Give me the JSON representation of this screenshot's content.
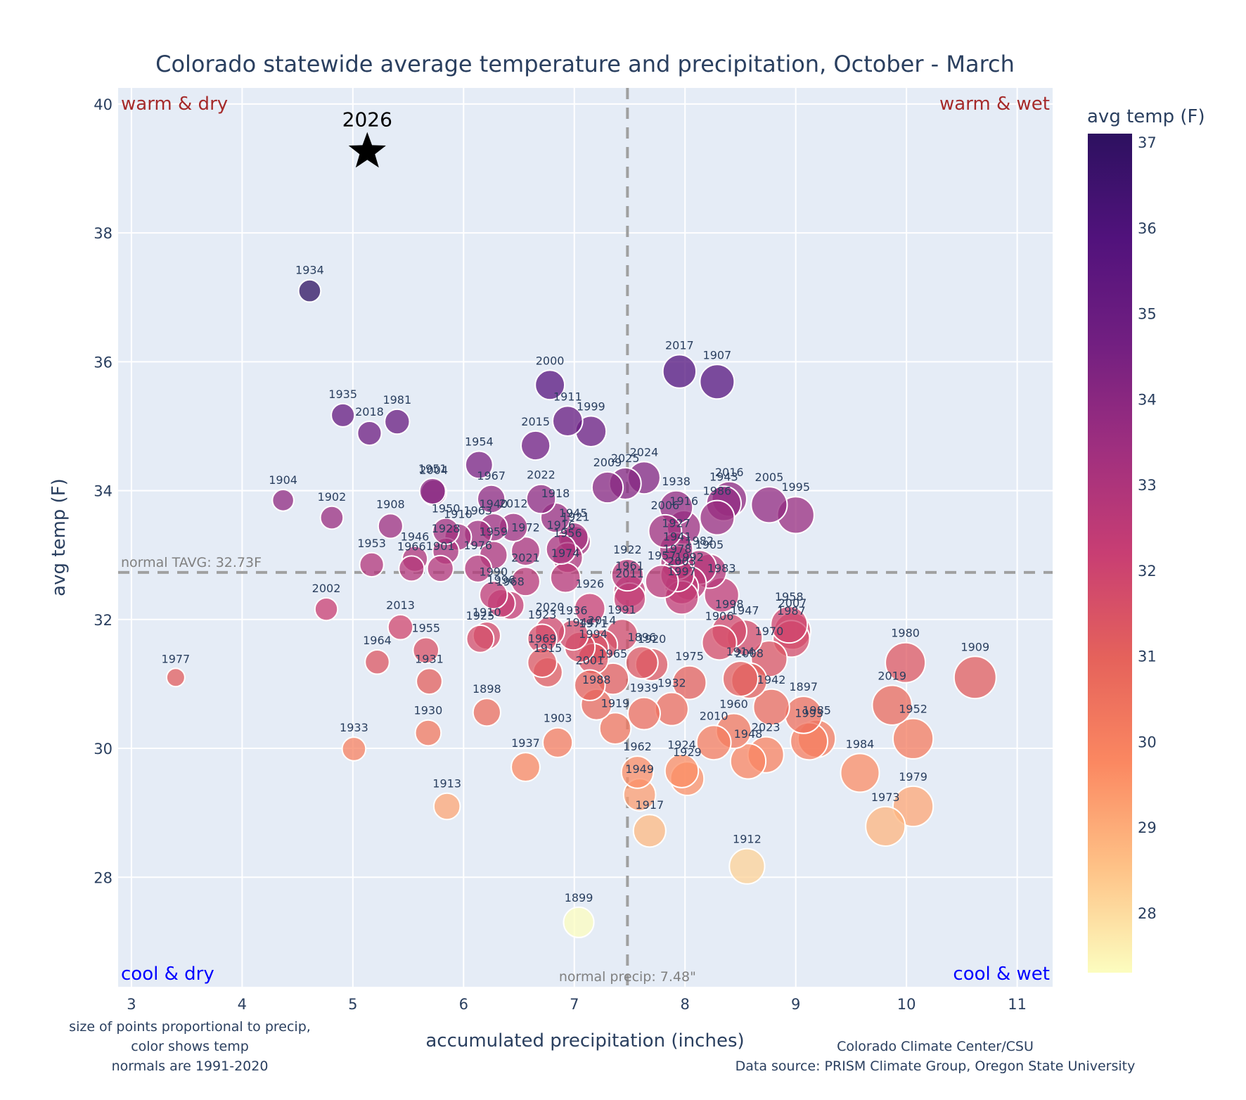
{
  "chart_data": {
    "type": "scatter",
    "title": "Colorado statewide average temperature and precipitation, October - March",
    "xlabel": "accumulated precipitation (inches)",
    "ylabel": "avg temp (F)",
    "xlim": [
      2.88,
      11.32
    ],
    "ylim": [
      26.3,
      40.25
    ],
    "xticks": [
      3,
      4,
      5,
      6,
      7,
      8,
      9,
      10,
      11
    ],
    "yticks": [
      28,
      30,
      32,
      34,
      36,
      38,
      40
    ],
    "grid": true,
    "colorbar": {
      "title": "avg temp (F)",
      "range": [
        27.3,
        37.1
      ],
      "ticks": [
        28,
        29,
        30,
        31,
        32,
        33,
        34,
        35,
        36,
        37
      ],
      "colorscale": [
        "#fcfdbf",
        "#fec287",
        "#fb8861",
        "#e5625b",
        "#c83e73",
        "#9f2f7f",
        "#721f81",
        "#51127c",
        "#2d1160"
      ]
    },
    "normals": {
      "precip": 7.48,
      "precip_label": "normal precip: 7.48\"",
      "tavg": 32.73,
      "tavg_label": "normal TAVG: 32.73F"
    },
    "quadrant_labels": {
      "warm_dry": "warm & dry",
      "warm_wet": "warm & wet",
      "cool_dry": "cool & dry",
      "cool_wet": "cool & wet"
    },
    "highlight": {
      "year": "2026",
      "precip": 5.13,
      "temp": 39.26,
      "marker": "star"
    },
    "points": [
      {
        "year": "1934",
        "precip": 4.61,
        "temp": 37.1
      },
      {
        "year": "1935",
        "precip": 4.91,
        "temp": 35.17
      },
      {
        "year": "2018",
        "precip": 5.15,
        "temp": 34.89
      },
      {
        "year": "1981",
        "precip": 5.4,
        "temp": 35.07
      },
      {
        "year": "1904",
        "precip": 4.37,
        "temp": 33.85
      },
      {
        "year": "1902",
        "precip": 4.81,
        "temp": 33.58
      },
      {
        "year": "2002",
        "precip": 4.76,
        "temp": 32.16
      },
      {
        "year": "1977",
        "precip": 3.4,
        "temp": 31.1
      },
      {
        "year": "1953",
        "precip": 5.17,
        "temp": 32.85
      },
      {
        "year": "1908",
        "precip": 5.34,
        "temp": 33.45
      },
      {
        "year": "1964",
        "precip": 5.22,
        "temp": 31.34
      },
      {
        "year": "2013",
        "precip": 5.43,
        "temp": 31.88
      },
      {
        "year": "1955",
        "precip": 5.66,
        "temp": 31.52
      },
      {
        "year": "1931",
        "precip": 5.69,
        "temp": 31.04
      },
      {
        "year": "1930",
        "precip": 5.68,
        "temp": 30.24
      },
      {
        "year": "1933",
        "precip": 5.01,
        "temp": 29.99
      },
      {
        "year": "1913",
        "precip": 5.85,
        "temp": 29.1
      },
      {
        "year": "1946",
        "precip": 5.56,
        "temp": 32.94
      },
      {
        "year": "1966",
        "precip": 5.53,
        "temp": 32.79
      },
      {
        "year": "1901",
        "precip": 5.79,
        "temp": 32.79
      },
      {
        "year": "1928",
        "precip": 5.84,
        "temp": 33.06
      },
      {
        "year": "1950",
        "precip": 5.84,
        "temp": 33.37
      },
      {
        "year": "1951",
        "precip": 5.72,
        "temp": 33.99
      },
      {
        "year": "2004",
        "precip": 5.73,
        "temp": 33.97
      },
      {
        "year": "1910",
        "precip": 5.95,
        "temp": 33.28
      },
      {
        "year": "1963",
        "precip": 6.13,
        "temp": 33.33
      },
      {
        "year": "1954",
        "precip": 6.14,
        "temp": 34.4
      },
      {
        "year": "1967",
        "precip": 6.25,
        "temp": 33.87
      },
      {
        "year": "1940",
        "precip": 6.27,
        "temp": 33.43
      },
      {
        "year": "2012",
        "precip": 6.45,
        "temp": 33.43
      },
      {
        "year": "1959",
        "precip": 6.27,
        "temp": 33.0
      },
      {
        "year": "1976",
        "precip": 6.13,
        "temp": 32.79
      },
      {
        "year": "1972",
        "precip": 6.56,
        "temp": 33.06
      },
      {
        "year": "1990",
        "precip": 6.27,
        "temp": 32.38
      },
      {
        "year": "1996",
        "precip": 6.34,
        "temp": 32.25
      },
      {
        "year": "1968",
        "precip": 6.42,
        "temp": 32.22
      },
      {
        "year": "2021",
        "precip": 6.56,
        "temp": 32.59
      },
      {
        "year": "1910",
        "precip": 6.21,
        "temp": 31.75
      },
      {
        "year": "1925",
        "precip": 6.15,
        "temp": 31.7
      },
      {
        "year": "1898",
        "precip": 6.21,
        "temp": 30.56
      },
      {
        "year": "2015",
        "precip": 6.65,
        "temp": 34.7
      },
      {
        "year": "2000",
        "precip": 6.78,
        "temp": 35.64
      },
      {
        "year": "1911",
        "precip": 6.94,
        "temp": 35.08
      },
      {
        "year": "1999",
        "precip": 7.15,
        "temp": 34.92
      },
      {
        "year": "2022",
        "precip": 6.7,
        "temp": 33.87
      },
      {
        "year": "1918",
        "precip": 6.83,
        "temp": 33.58
      },
      {
        "year": "1945",
        "precip": 6.99,
        "temp": 33.27
      },
      {
        "year": "1916",
        "precip": 6.88,
        "temp": 33.09
      },
      {
        "year": "1921",
        "precip": 7.01,
        "temp": 33.21
      },
      {
        "year": "1956",
        "precip": 6.94,
        "temp": 32.96
      },
      {
        "year": "1974",
        "precip": 6.92,
        "temp": 32.65
      },
      {
        "year": "2020",
        "precip": 6.78,
        "temp": 31.82
      },
      {
        "year": "1923",
        "precip": 6.71,
        "temp": 31.7
      },
      {
        "year": "1926",
        "precip": 7.14,
        "temp": 32.17
      },
      {
        "year": "1936",
        "precip": 6.99,
        "temp": 31.76
      },
      {
        "year": "1944",
        "precip": 7.05,
        "temp": 31.57
      },
      {
        "year": "1971",
        "precip": 7.17,
        "temp": 31.55
      },
      {
        "year": "2014",
        "precip": 7.25,
        "temp": 31.6
      },
      {
        "year": "1994",
        "precip": 7.17,
        "temp": 31.39
      },
      {
        "year": "1969",
        "precip": 6.71,
        "temp": 31.33
      },
      {
        "year": "1965",
        "precip": 7.35,
        "temp": 31.08
      },
      {
        "year": "2001",
        "precip": 7.14,
        "temp": 30.98
      },
      {
        "year": "1915",
        "precip": 6.76,
        "temp": 31.18
      },
      {
        "year": "1988",
        "precip": 7.2,
        "temp": 30.68
      },
      {
        "year": "1919",
        "precip": 7.37,
        "temp": 30.31
      },
      {
        "year": "1903",
        "precip": 6.85,
        "temp": 30.09
      },
      {
        "year": "1937",
        "precip": 6.56,
        "temp": 29.71
      },
      {
        "year": "1899",
        "precip": 7.04,
        "temp": 27.3
      },
      {
        "year": "2009",
        "precip": 7.3,
        "temp": 34.05
      },
      {
        "year": "2025",
        "precip": 7.46,
        "temp": 34.11
      },
      {
        "year": "2024",
        "precip": 7.63,
        "temp": 34.2
      },
      {
        "year": "1961",
        "precip": 7.5,
        "temp": 32.44
      },
      {
        "year": "1922",
        "precip": 7.48,
        "temp": 32.69
      },
      {
        "year": "2011",
        "precip": 7.5,
        "temp": 32.32
      },
      {
        "year": "1991",
        "precip": 7.43,
        "temp": 31.76
      },
      {
        "year": "1896",
        "precip": 7.61,
        "temp": 31.33
      },
      {
        "year": "1920",
        "precip": 7.7,
        "temp": 31.3
      },
      {
        "year": "1939",
        "precip": 7.63,
        "temp": 30.54
      },
      {
        "year": "1962",
        "precip": 7.57,
        "temp": 29.63
      },
      {
        "year": "1949",
        "precip": 7.59,
        "temp": 29.28
      },
      {
        "year": "1917",
        "precip": 7.68,
        "temp": 28.72
      },
      {
        "year": "1957",
        "precip": 7.79,
        "temp": 32.59
      },
      {
        "year": "2017",
        "precip": 7.95,
        "temp": 35.85
      },
      {
        "year": "1907",
        "precip": 8.29,
        "temp": 35.69
      },
      {
        "year": "1938",
        "precip": 7.92,
        "temp": 33.74
      },
      {
        "year": "2006",
        "precip": 7.82,
        "temp": 33.37
      },
      {
        "year": "1916",
        "precip": 7.99,
        "temp": 33.43
      },
      {
        "year": "1927",
        "precip": 7.92,
        "temp": 33.09
      },
      {
        "year": "1941",
        "precip": 7.93,
        "temp": 32.88
      },
      {
        "year": "1978",
        "precip": 7.93,
        "temp": 32.69
      },
      {
        "year": "2003",
        "precip": 7.97,
        "temp": 32.5
      },
      {
        "year": "1982",
        "precip": 8.13,
        "temp": 32.81
      },
      {
        "year": "1992",
        "precip": 8.04,
        "temp": 32.56
      },
      {
        "year": "1997",
        "precip": 7.97,
        "temp": 32.34
      },
      {
        "year": "1905",
        "precip": 8.22,
        "temp": 32.75
      },
      {
        "year": "1983",
        "precip": 8.33,
        "temp": 32.38
      },
      {
        "year": "1932",
        "precip": 7.88,
        "temp": 30.61
      },
      {
        "year": "1975",
        "precip": 8.04,
        "temp": 31.02
      },
      {
        "year": "2010",
        "precip": 8.26,
        "temp": 30.09
      },
      {
        "year": "1924",
        "precip": 7.97,
        "temp": 29.65
      },
      {
        "year": "1929",
        "precip": 8.02,
        "temp": 29.53
      },
      {
        "year": "1960",
        "precip": 8.44,
        "temp": 30.27
      },
      {
        "year": "1948",
        "precip": 8.57,
        "temp": 29.8
      },
      {
        "year": "2023",
        "precip": 8.73,
        "temp": 29.9
      },
      {
        "year": "1912",
        "precip": 8.56,
        "temp": 28.17
      },
      {
        "year": "2016",
        "precip": 8.4,
        "temp": 33.87
      },
      {
        "year": "1943",
        "precip": 8.35,
        "temp": 33.8
      },
      {
        "year": "1986",
        "precip": 8.29,
        "temp": 33.58
      },
      {
        "year": "2005",
        "precip": 8.76,
        "temp": 33.78
      },
      {
        "year": "1995",
        "precip": 9.0,
        "temp": 33.62
      },
      {
        "year": "1998",
        "precip": 8.4,
        "temp": 31.82
      },
      {
        "year": "1906",
        "precip": 8.31,
        "temp": 31.64
      },
      {
        "year": "1947",
        "precip": 8.54,
        "temp": 31.72
      },
      {
        "year": "1914",
        "precip": 8.5,
        "temp": 31.08
      },
      {
        "year": "2008",
        "precip": 8.58,
        "temp": 31.05
      },
      {
        "year": "1970",
        "precip": 8.76,
        "temp": 31.39
      },
      {
        "year": "1942",
        "precip": 8.78,
        "temp": 30.64
      },
      {
        "year": "1958",
        "precip": 8.94,
        "temp": 31.92
      },
      {
        "year": "2007",
        "precip": 8.97,
        "temp": 31.82
      },
      {
        "year": "1987",
        "precip": 8.96,
        "temp": 31.7
      },
      {
        "year": "1897",
        "precip": 9.07,
        "temp": 30.52
      },
      {
        "year": "1993",
        "precip": 9.12,
        "temp": 30.11
      },
      {
        "year": "1985",
        "precip": 9.19,
        "temp": 30.15
      },
      {
        "year": "1984",
        "precip": 9.58,
        "temp": 29.62
      },
      {
        "year": "1980",
        "precip": 9.99,
        "temp": 31.33
      },
      {
        "year": "2019",
        "precip": 9.87,
        "temp": 30.67
      },
      {
        "year": "1952",
        "precip": 10.06,
        "temp": 30.15
      },
      {
        "year": "1979",
        "precip": 10.06,
        "temp": 29.1
      },
      {
        "year": "1973",
        "precip": 9.81,
        "temp": 28.79
      },
      {
        "year": "1909",
        "precip": 10.62,
        "temp": 31.1
      }
    ]
  },
  "notes": {
    "left": [
      "size of points proportional to precip,",
      "color shows temp",
      "normals are 1991-2020"
    ],
    "right": [
      "Colorado Climate Center/CSU",
      "Data source: PRISM Climate Group, Oregon State University"
    ]
  }
}
